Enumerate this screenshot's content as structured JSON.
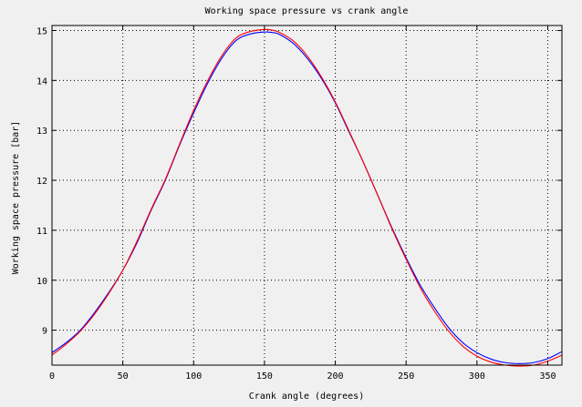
{
  "chart_data": {
    "type": "line",
    "title": "Working space pressure vs crank angle",
    "xlabel": "Crank angle (degrees)",
    "ylabel": "Working space pressure [bar]",
    "xlim": [
      0,
      360
    ],
    "ylim": [
      8.3,
      15.1
    ],
    "x_ticks": [
      0,
      50,
      100,
      150,
      200,
      250,
      300,
      350
    ],
    "y_ticks": [
      9,
      10,
      11,
      12,
      13,
      14,
      15
    ],
    "grid": true,
    "legend": "none",
    "series": [
      {
        "color": "#0000ff",
        "x": [
          0,
          10,
          20,
          30,
          40,
          50,
          60,
          70,
          80,
          90,
          100,
          110,
          120,
          130,
          140,
          150,
          155,
          160,
          170,
          180,
          190,
          200,
          210,
          220,
          230,
          240,
          250,
          260,
          270,
          280,
          290,
          300,
          310,
          320,
          330,
          340,
          350,
          360
        ],
        "values": [
          8.55,
          8.75,
          9.0,
          9.35,
          9.75,
          10.2,
          10.75,
          11.4,
          12.0,
          12.7,
          13.35,
          13.95,
          14.45,
          14.8,
          14.93,
          14.97,
          14.96,
          14.93,
          14.75,
          14.45,
          14.05,
          13.55,
          12.95,
          12.35,
          11.7,
          11.05,
          10.45,
          9.9,
          9.45,
          9.05,
          8.75,
          8.55,
          8.42,
          8.35,
          8.33,
          8.35,
          8.43,
          8.57
        ]
      },
      {
        "color": "#ff0000",
        "x": [
          0,
          10,
          20,
          30,
          40,
          50,
          60,
          70,
          80,
          90,
          100,
          110,
          120,
          130,
          140,
          150,
          155,
          160,
          170,
          180,
          190,
          200,
          210,
          220,
          230,
          240,
          250,
          260,
          270,
          280,
          290,
          300,
          310,
          320,
          330,
          340,
          350,
          360
        ],
        "values": [
          8.5,
          8.72,
          8.98,
          9.32,
          9.73,
          10.2,
          10.78,
          11.42,
          12.02,
          12.72,
          13.4,
          14.0,
          14.5,
          14.85,
          14.98,
          15.02,
          15.01,
          14.97,
          14.8,
          14.5,
          14.08,
          13.57,
          12.97,
          12.35,
          11.7,
          11.03,
          10.42,
          9.85,
          9.38,
          8.98,
          8.68,
          8.48,
          8.36,
          8.3,
          8.28,
          8.3,
          8.38,
          8.5
        ]
      }
    ]
  }
}
